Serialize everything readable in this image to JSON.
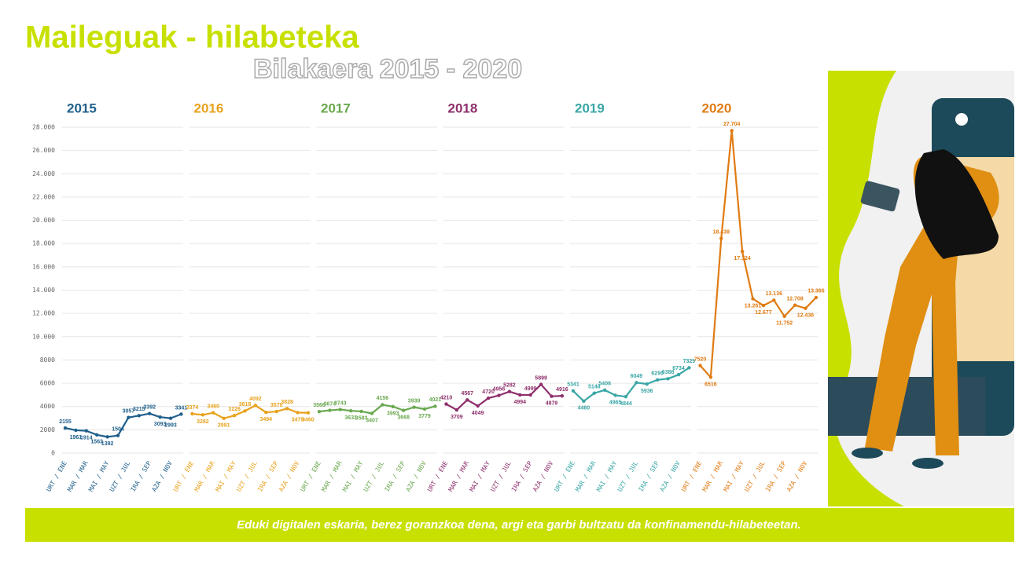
{
  "chart_data": {
    "type": "line",
    "title": "Maileguak - hilabeteka",
    "subtitle": "Bilakaera 2015 - 2020",
    "footer": "Eduki digitalen eskaria, berez goranzkoa dena, argi eta garbi bultzatu da konfinamendu-hilabeteetan.",
    "categories": [
      "URT / ENE",
      null,
      "MAR / MAR",
      null,
      "MAI / MAY",
      null,
      "UZT / JUL",
      null,
      "IRA / SEP",
      null,
      "AZA / NOV",
      null
    ],
    "series": [
      {
        "name": "2015",
        "color": "#1f5f8b",
        "values": [
          2155,
          1961,
          1914,
          1563,
          1392,
          1504,
          3057,
          3215,
          3392,
          3093,
          2993,
          3341
        ]
      },
      {
        "name": "2016",
        "color": "#e8a21c",
        "values": [
          3374,
          3282,
          3460,
          2981,
          3226,
          3618,
          4092,
          3494,
          3570,
          3828,
          3479,
          3460
        ]
      },
      {
        "name": "2017",
        "color": "#6aa84f",
        "values": [
          3566,
          3674,
          3743,
          3631,
          3583,
          3407,
          4156,
          3993,
          3668,
          3939,
          3779,
          4021
        ]
      },
      {
        "name": "2018",
        "color": "#8e2e6b",
        "values": [
          4210,
          3709,
          4567,
          4049,
          4720,
          4956,
          5282,
          4994,
          4999,
          5899,
          4879,
          4916
        ]
      },
      {
        "name": "2019",
        "color": "#3aa6a6",
        "values": [
          5341,
          4460,
          5148,
          5408,
          4965,
          4844,
          6049,
          5936,
          6290,
          6388,
          6734,
          7329
        ]
      },
      {
        "name": "2020",
        "color": "#e07b12",
        "values": [
          7520,
          6516,
          18439,
          27704,
          17324,
          13261,
          12677,
          13136,
          11752,
          12708,
          12436,
          13366
        ],
        "value_labels": [
          "7520",
          "6516",
          "18.439",
          "27.704",
          "17.324",
          "13.261",
          "12.677",
          "13.136",
          "11.752",
          "12.708",
          "12.436",
          "13.366"
        ]
      }
    ],
    "ylim": [
      0,
      28000
    ],
    "yticks": [
      0,
      2000,
      4000,
      6000,
      8000,
      {
        "value": 10000,
        "label": "10.000"
      },
      {
        "value": 12000,
        "label": "12.000"
      },
      {
        "value": 14000,
        "label": "14.000"
      },
      {
        "value": 16000,
        "label": "16.000"
      },
      {
        "value": 18000,
        "label": "18.000"
      },
      {
        "value": 20000,
        "label": "20.000"
      },
      {
        "value": 22000,
        "label": "22.000"
      },
      {
        "value": 24000,
        "label": "24.000"
      },
      {
        "value": 26000,
        "label": "26.000"
      },
      {
        "value": 28000,
        "label": "28.000"
      }
    ],
    "grid": true
  }
}
